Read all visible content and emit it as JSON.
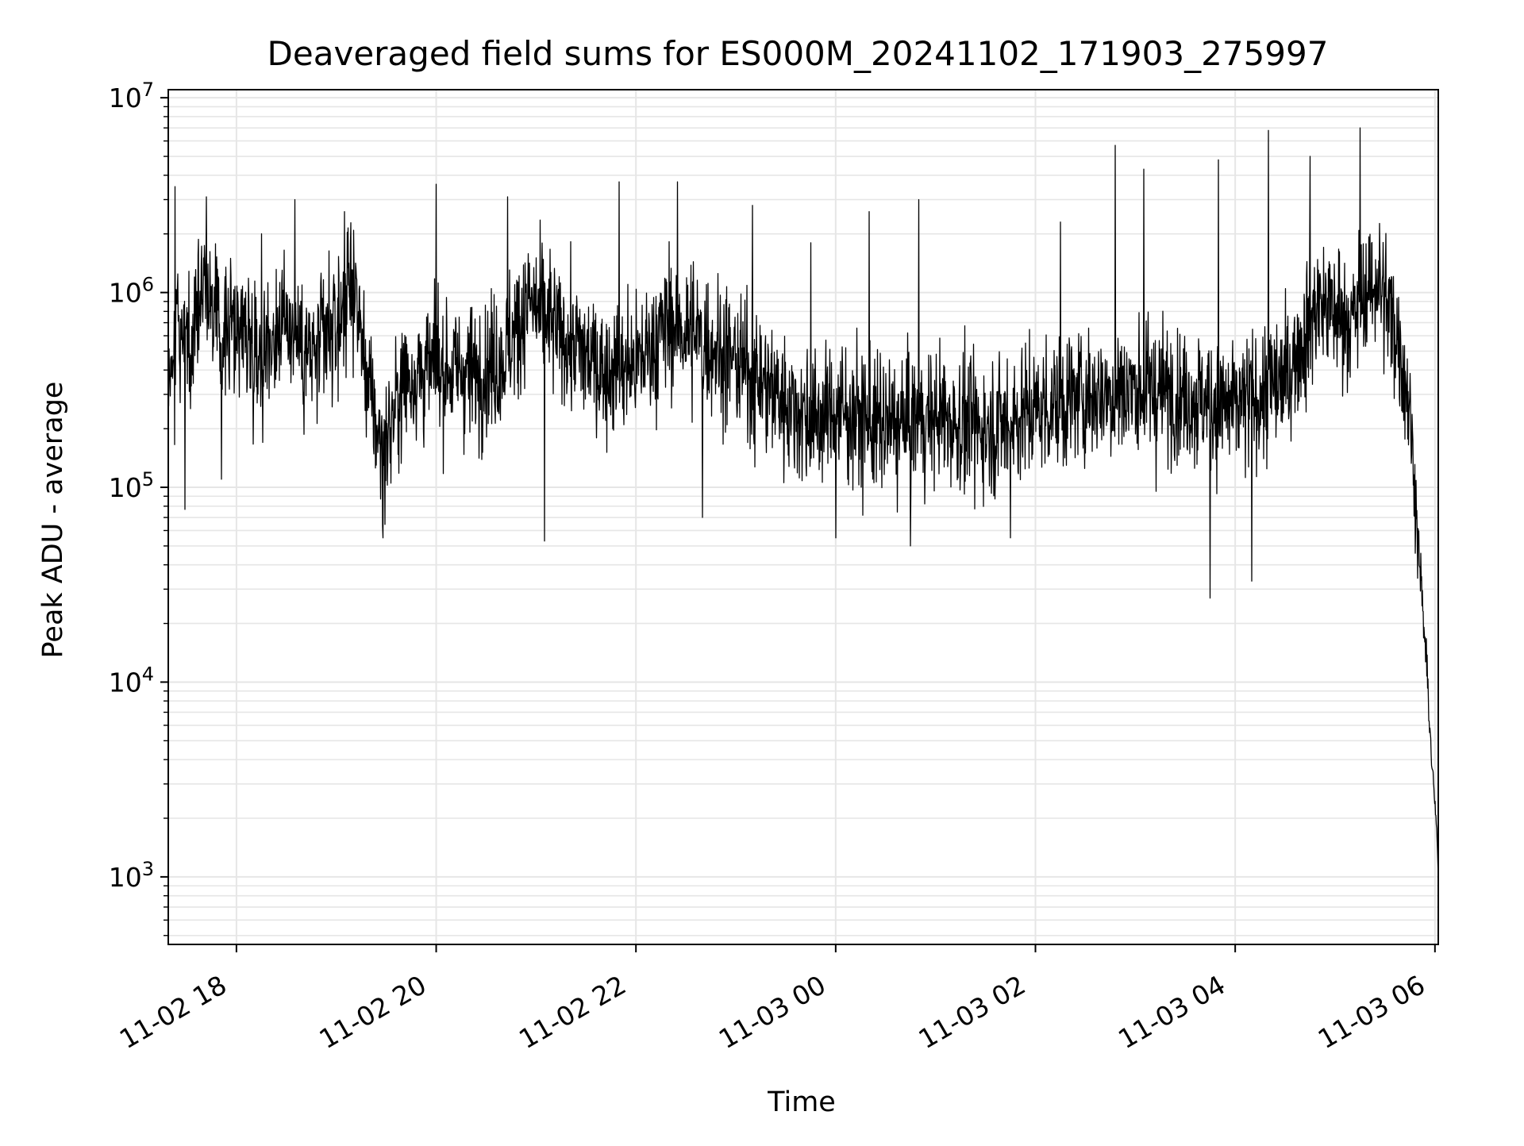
{
  "chart_data": {
    "type": "line",
    "title": "Deaveraged field sums for ES000M_20241102_171903_275997",
    "xlabel": "Time",
    "ylabel": "Peak ADU - average",
    "yscale": "log",
    "ylim": [
      450,
      11000000
    ],
    "x_range": [
      "2024-11-02T17:19:03",
      "2024-11-03T06:02:00"
    ],
    "grid": true,
    "line_color": "#000000",
    "grid_color": "#e6e6e6",
    "x_ticks": [
      {
        "t": "2024-11-02T18:00:00",
        "label": "11-02 18"
      },
      {
        "t": "2024-11-02T20:00:00",
        "label": "11-02 20"
      },
      {
        "t": "2024-11-02T22:00:00",
        "label": "11-02 22"
      },
      {
        "t": "2024-11-03T00:00:00",
        "label": "11-03 00"
      },
      {
        "t": "2024-11-03T02:00:00",
        "label": "11-03 02"
      },
      {
        "t": "2024-11-03T04:00:00",
        "label": "11-03 04"
      },
      {
        "t": "2024-11-03T06:00:00",
        "label": "11-03 06"
      }
    ],
    "y_ticks": [
      {
        "value": 1000,
        "base": "10",
        "exp": "3"
      },
      {
        "value": 10000,
        "base": "10",
        "exp": "4"
      },
      {
        "value": 100000,
        "base": "10",
        "exp": "5"
      },
      {
        "value": 1000000,
        "base": "10",
        "exp": "6"
      },
      {
        "value": 10000000,
        "base": "10",
        "exp": "7"
      }
    ],
    "series": [
      {
        "points": [
          [
            "2024-11-02T17:19:03",
            300000
          ],
          [
            "2024-11-02T17:25:00",
            900000
          ],
          [
            "2024-11-02T17:32:00",
            400000
          ],
          [
            "2024-11-02T17:40:00",
            1300000
          ],
          [
            "2024-11-02T17:50:00",
            600000
          ],
          [
            "2024-11-02T18:00:00",
            700000
          ],
          [
            "2024-11-02T18:15:00",
            500000
          ],
          [
            "2024-11-02T18:30:00",
            750000
          ],
          [
            "2024-11-02T18:45:00",
            450000
          ],
          [
            "2024-11-02T19:00:00",
            650000
          ],
          [
            "2024-11-02T19:10:00",
            1200000
          ],
          [
            "2024-11-02T19:20:00",
            300000
          ],
          [
            "2024-11-02T19:28:00",
            150000
          ],
          [
            "2024-11-02T19:40:00",
            350000
          ],
          [
            "2024-11-02T20:00:00",
            420000
          ],
          [
            "2024-11-02T20:20:00",
            380000
          ],
          [
            "2024-11-02T20:40:00",
            450000
          ],
          [
            "2024-11-02T20:55:00",
            900000
          ],
          [
            "2024-11-02T21:15:00",
            600000
          ],
          [
            "2024-11-02T21:40:00",
            400000
          ],
          [
            "2024-11-02T22:00:00",
            420000
          ],
          [
            "2024-11-02T22:20:00",
            700000
          ],
          [
            "2024-11-02T22:45:00",
            550000
          ],
          [
            "2024-11-02T23:15:00",
            350000
          ],
          [
            "2024-11-02T23:45:00",
            220000
          ],
          [
            "2024-11-03T00:00:00",
            250000
          ],
          [
            "2024-11-03T00:30:00",
            200000
          ],
          [
            "2024-11-03T01:00:00",
            230000
          ],
          [
            "2024-11-03T01:30:00",
            200000
          ],
          [
            "2024-11-03T02:00:00",
            250000
          ],
          [
            "2024-11-03T02:30:00",
            300000
          ],
          [
            "2024-11-03T03:00:00",
            320000
          ],
          [
            "2024-11-03T03:30:00",
            300000
          ],
          [
            "2024-11-03T04:00:00",
            250000
          ],
          [
            "2024-11-03T04:30:00",
            350000
          ],
          [
            "2024-11-03T04:50:00",
            900000
          ],
          [
            "2024-11-03T05:10:00",
            700000
          ],
          [
            "2024-11-03T05:25:00",
            1200000
          ],
          [
            "2024-11-03T05:38:00",
            600000
          ],
          [
            "2024-11-03T05:45:00",
            250000
          ],
          [
            "2024-11-03T05:50:00",
            50000
          ],
          [
            "2024-11-03T05:55:00",
            12000
          ],
          [
            "2024-11-03T05:58:00",
            4000
          ],
          [
            "2024-11-03T06:01:00",
            1800
          ],
          [
            "2024-11-03T06:02:00",
            1000
          ]
        ],
        "spikes": [
          [
            "2024-11-02T17:23:00",
            3500000
          ],
          [
            "2024-11-02T17:42:00",
            3100000
          ],
          [
            "2024-11-02T18:15:00",
            2000000
          ],
          [
            "2024-11-02T18:35:00",
            3000000
          ],
          [
            "2024-11-02T19:05:00",
            2600000
          ],
          [
            "2024-11-02T20:00:00",
            3600000
          ],
          [
            "2024-11-02T20:43:00",
            3100000
          ],
          [
            "2024-11-02T21:50:00",
            3700000
          ],
          [
            "2024-11-02T22:25:00",
            3700000
          ],
          [
            "2024-11-02T23:10:00",
            2800000
          ],
          [
            "2024-11-02T23:45:00",
            1800000
          ],
          [
            "2024-11-03T00:20:00",
            2600000
          ],
          [
            "2024-11-03T00:50:00",
            3000000
          ],
          [
            "2024-11-03T02:15:00",
            2300000
          ],
          [
            "2024-11-03T02:48:00",
            5700000
          ],
          [
            "2024-11-03T03:05:00",
            4300000
          ],
          [
            "2024-11-03T03:50:00",
            4800000
          ],
          [
            "2024-11-03T04:20:00",
            6800000
          ],
          [
            "2024-11-03T04:45:00",
            5000000
          ],
          [
            "2024-11-03T05:15:00",
            7000000
          ]
        ],
        "dips": [
          [
            "2024-11-02T17:29:00",
            77000
          ],
          [
            "2024-11-02T17:51:00",
            110000
          ],
          [
            "2024-11-02T19:28:00",
            55000
          ],
          [
            "2024-11-02T21:05:00",
            53000
          ],
          [
            "2024-11-02T22:40:00",
            70000
          ],
          [
            "2024-11-03T00:00:00",
            55000
          ],
          [
            "2024-11-03T00:45:00",
            50000
          ],
          [
            "2024-11-03T01:45:00",
            55000
          ],
          [
            "2024-11-03T03:45:00",
            27000
          ],
          [
            "2024-11-03T04:10:00",
            33000
          ]
        ]
      }
    ]
  }
}
